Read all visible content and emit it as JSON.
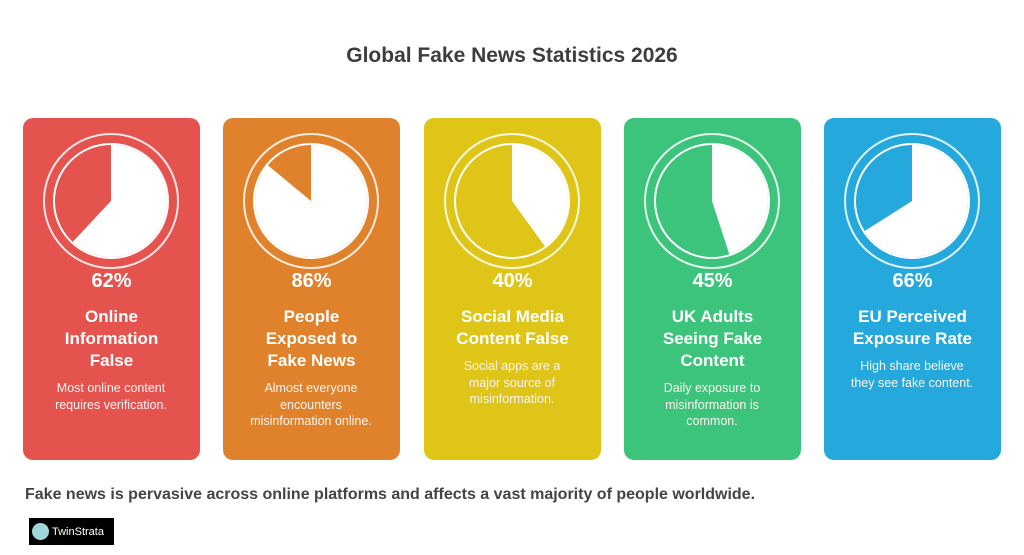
{
  "title": "Global Fake News Statistics 2026",
  "chart_data": {
    "type": "pie",
    "title": "Global Fake News Statistics 2026",
    "items": [
      {
        "value": 62,
        "value_label": "62%",
        "label": "Online Information False",
        "label_lines": [
          "Online",
          "Information",
          "False"
        ],
        "description": "Most online content requires verification.",
        "color": "#E5534F"
      },
      {
        "value": 86,
        "value_label": "86%",
        "label": "People Exposed to Fake News",
        "label_lines": [
          "People",
          "Exposed to",
          "Fake News"
        ],
        "description": "Almost everyone encounters misinformation online.",
        "color": "#E0822C"
      },
      {
        "value": 40,
        "value_label": "40%",
        "label": "Social Media Content False",
        "label_lines": [
          "Social Media",
          "Content False"
        ],
        "description": "Social apps are a major source of misinformation.",
        "color": "#DFC518"
      },
      {
        "value": 45,
        "value_label": "45%",
        "label": "UK Adults Seeing Fake Content",
        "label_lines": [
          "UK Adults",
          "Seeing Fake",
          "Content"
        ],
        "description": "Daily exposure to misinformation is common.",
        "color": "#3CC47C"
      },
      {
        "value": 66,
        "value_label": "66%",
        "label": "EU Perceived Exposure Rate",
        "label_lines": [
          "EU Perceived",
          "Exposure Rate"
        ],
        "description": "High share believe they see fake content.",
        "color": "#25A9DC"
      }
    ]
  },
  "footer": "Fake news is pervasive across online platforms and affects a vast majority of people worldwide.",
  "logo": "TwinStrata"
}
